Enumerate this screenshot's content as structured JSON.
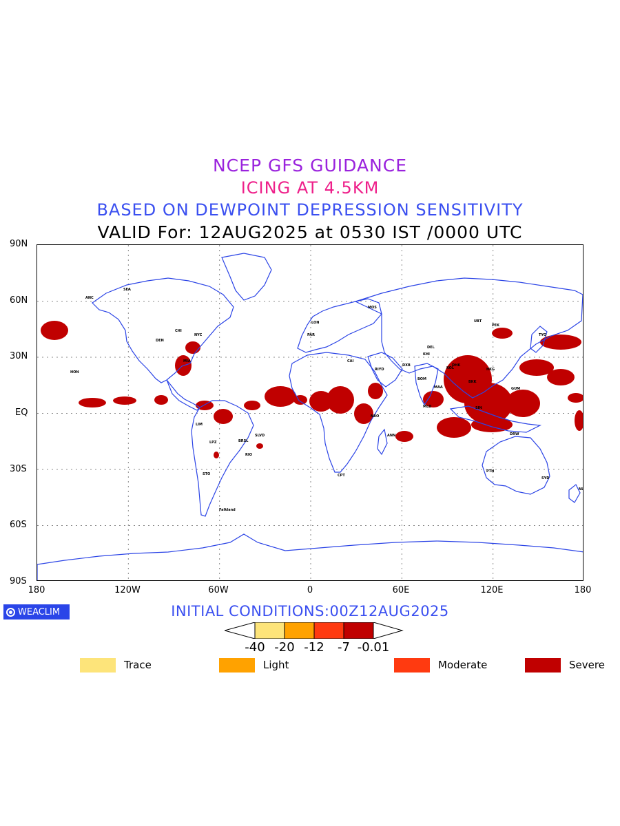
{
  "titles": {
    "line1": "NCEP GFS GUIDANCE",
    "line2": "ICING AT 4.5KM",
    "line3": "BASED ON DEWPOINT DEPRESSION SENSITIVITY",
    "line4": "VALID For: 12AUG2025 at 0530 IST /0000 UTC"
  },
  "axes": {
    "lat_labels": [
      "90N",
      "60N",
      "30N",
      "EQ",
      "30S",
      "60S",
      "90S"
    ],
    "lon_labels": [
      "180",
      "120W",
      "60W",
      "0",
      "60E",
      "120E",
      "180"
    ]
  },
  "brand": {
    "label": "WEACLIM",
    "icon": "weaclim-logo-icon"
  },
  "initial_conditions": "INITIAL CONDITIONS:00Z12AUG2025",
  "colorbar": {
    "ticks": [
      "-40",
      "-20",
      "-12",
      "-7",
      "-0.01"
    ],
    "colors": [
      "#fde47a",
      "#ffa200",
      "#ff3a10",
      "#c00000"
    ]
  },
  "legend": [
    {
      "label": "Trace",
      "color": "#fde47a"
    },
    {
      "label": "Light",
      "color": "#ffa200"
    },
    {
      "label": "Moderate",
      "color": "#ff3a10"
    },
    {
      "label": "Severe",
      "color": "#c00000"
    }
  ],
  "map_colors": {
    "coastline": "#2b44e6",
    "icing": "#c00000",
    "grid": "#888888"
  },
  "stations": [
    "ANC",
    "SEA",
    "DEN",
    "CHI",
    "NYC",
    "MIA",
    "HON",
    "LIM",
    "BRSL",
    "SLVD",
    "LPZ",
    "STO",
    "RIO",
    "Falkland",
    "LON",
    "PAR",
    "MOS",
    "CAI",
    "RIYD",
    "DXB",
    "KHI",
    "DEL",
    "BOM",
    "MAA",
    "KOL",
    "DHK",
    "BKK",
    "SIN",
    "HKG",
    "PEK",
    "TYO",
    "UBT",
    "CPT",
    "NBO",
    "ANN",
    "MLD",
    "PTH",
    "SYD",
    "DRW",
    "GUM",
    "NLT"
  ]
}
